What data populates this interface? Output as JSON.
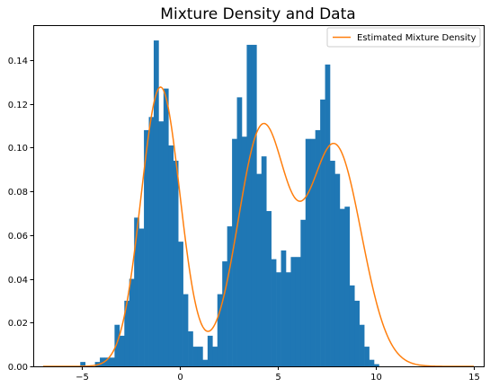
{
  "chart_data": {
    "type": "bar",
    "title": "Mixture Density and Data",
    "xlabel": "",
    "ylabel": "",
    "xlim": [
      -7.5,
      15.5
    ],
    "ylim": [
      0,
      0.156
    ],
    "xticks": [
      -5,
      0,
      5,
      10,
      15
    ],
    "yticks": [
      0.0,
      0.02,
      0.04,
      0.06,
      0.08,
      0.1,
      0.12,
      0.14
    ],
    "grid": false,
    "legend": {
      "placement": "top-right",
      "entries": [
        "Estimated Mixture Density"
      ]
    },
    "colors": {
      "histogram": "#1f77b4",
      "density": "#ff7f0e"
    },
    "histogram": {
      "x_start": -5.1,
      "bin_width": 0.25,
      "values": [
        0.002,
        0,
        0,
        0.002,
        0.004,
        0.004,
        0.004,
        0.019,
        0.014,
        0.03,
        0.04,
        0.068,
        0.063,
        0.108,
        0.114,
        0.149,
        0.112,
        0.127,
        0.101,
        0.094,
        0.057,
        0.033,
        0.016,
        0.009,
        0.009,
        0.003,
        0.014,
        0.009,
        0.033,
        0.048,
        0.064,
        0.104,
        0.123,
        0.105,
        0.147,
        0.147,
        0.088,
        0.096,
        0.071,
        0.049,
        0.043,
        0.053,
        0.043,
        0.05,
        0.05,
        0.067,
        0.104,
        0.104,
        0.108,
        0.122,
        0.138,
        0.094,
        0.088,
        0.072,
        0.073,
        0.037,
        0.03,
        0.019,
        0.009,
        0.003,
        0.001
      ]
    },
    "series": [
      {
        "name": "Estimated Mixture Density",
        "type": "line",
        "components": [
          {
            "weight": 0.32,
            "mean": -1.0,
            "sd": 1.0
          },
          {
            "weight": 0.34,
            "mean": 4.2,
            "sd": 1.25
          },
          {
            "weight": 0.34,
            "mean": 7.9,
            "sd": 1.35
          }
        ],
        "x_range": [
          -7,
          15
        ]
      }
    ]
  }
}
